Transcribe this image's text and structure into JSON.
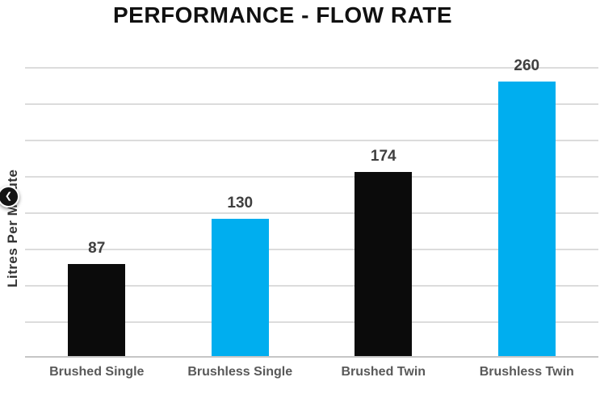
{
  "carousel": {
    "prev_icon": "❮"
  },
  "chart_data": {
    "type": "bar",
    "title": "PERFORMANCE - FLOW RATE",
    "categories": [
      "Brushed Single",
      "Brushless Single",
      "Brushed Twin",
      "Brushless Twin"
    ],
    "values": [
      87,
      130,
      174,
      260
    ],
    "bar_colors": [
      "#0b0b0b",
      "#00aeef",
      "#0b0b0b",
      "#00aeef"
    ],
    "xlabel": "",
    "ylabel": "Litres Per Minute",
    "ylim": [
      0,
      275
    ],
    "grid": "horizontal",
    "gridline_count": 9,
    "legend": "none",
    "data_labels": true
  },
  "colors": {
    "bar_black": "#0b0b0b",
    "accent_cyan": "#00aeef",
    "gridline": "#dcdcdc",
    "axis_line": "#c6c6c6",
    "value_label": "#3f3f3f",
    "category_label": "#595959",
    "title_text": "#111111"
  }
}
